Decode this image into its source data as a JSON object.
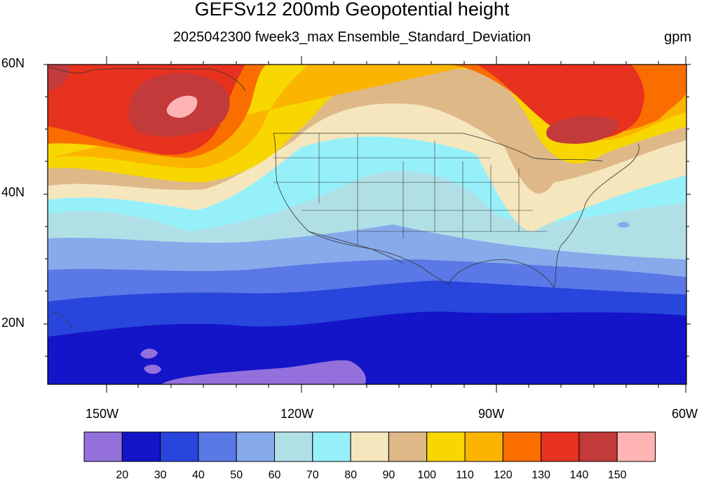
{
  "title": "GEFSv12 200mb Geopotential height",
  "subtitle": "2025042300 fweek3_max Ensemble_Standard_Deviation",
  "units": "gpm",
  "lat_labels": [
    "60N",
    "40N",
    "20N"
  ],
  "lon_labels": [
    "150W",
    "120W",
    "90W",
    "60W"
  ],
  "colorbar": {
    "levels": [
      "20",
      "30",
      "40",
      "50",
      "60",
      "70",
      "80",
      "90",
      "100",
      "110",
      "120",
      "130",
      "140",
      "150"
    ],
    "colors": [
      "#9370db",
      "#1414c8",
      "#2846dc",
      "#5a78e6",
      "#87aaeb",
      "#b0e0e6",
      "#96f0fa",
      "#f5e6be",
      "#deb887",
      "#f8d700",
      "#fbb400",
      "#fa6e00",
      "#e6321e",
      "#c33a3a",
      "#ffb4b4"
    ]
  }
}
